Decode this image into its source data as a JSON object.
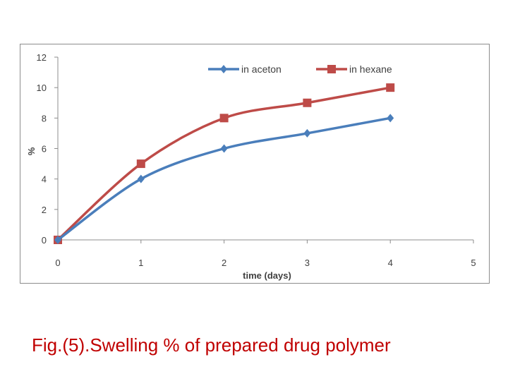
{
  "chart_data": {
    "type": "line",
    "title": "",
    "xlabel": "time (days)",
    "ylabel": "%",
    "xlim": [
      0,
      5
    ],
    "ylim": [
      0,
      12
    ],
    "x_ticks": [
      "0",
      "1",
      "2",
      "3",
      "4",
      "5"
    ],
    "y_ticks": [
      "0",
      "2",
      "4",
      "6",
      "8",
      "10",
      "12"
    ],
    "grid": false,
    "legend_position": "top-right",
    "series": [
      {
        "name": "in aceton",
        "color": "#4a7ebb",
        "marker": "diamond",
        "x": [
          0,
          1,
          2,
          3,
          4
        ],
        "y": [
          0,
          4,
          6,
          7,
          8
        ]
      },
      {
        "name": "in hexane",
        "color": "#be4b48",
        "marker": "square",
        "x": [
          0,
          1,
          2,
          3,
          4
        ],
        "y": [
          0,
          5,
          8,
          9,
          10
        ]
      }
    ]
  },
  "caption": "Fig.(5).Swelling % of prepared drug polymer"
}
